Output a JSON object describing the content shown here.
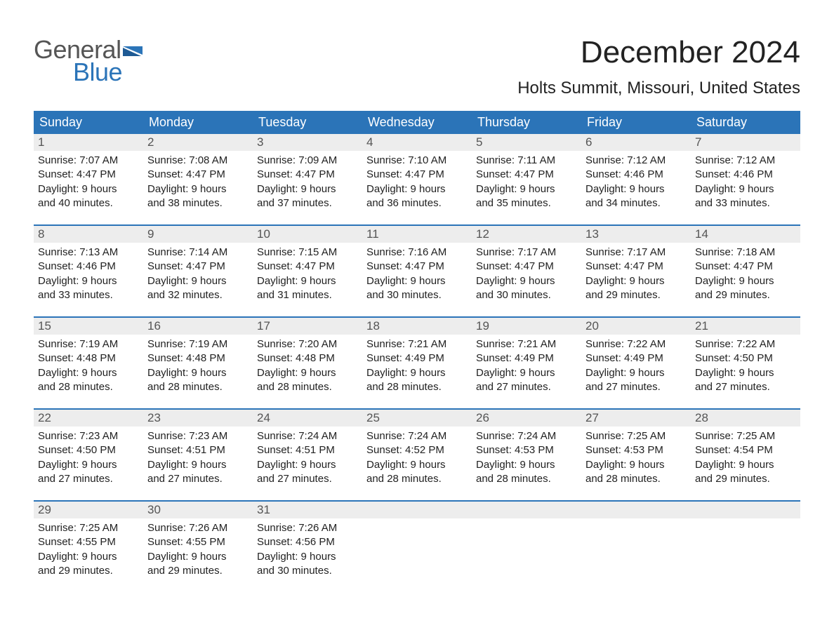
{
  "colors": {
    "brand_blue": "#2b74b8",
    "header_bg": "#2b74b8",
    "daynum_bg": "#ededed",
    "text": "#222222",
    "muted": "#555555",
    "background": "#ffffff"
  },
  "typography": {
    "font_family": "Arial, Helvetica, sans-serif",
    "month_title_fontsize": 44,
    "location_fontsize": 24,
    "weekday_fontsize": 18,
    "daynum_fontsize": 17,
    "body_fontsize": 15
  },
  "logo": {
    "line1": "General",
    "line2": "Blue"
  },
  "header": {
    "month_title": "December 2024",
    "location": "Holts Summit, Missouri, United States"
  },
  "weekdays": [
    "Sunday",
    "Monday",
    "Tuesday",
    "Wednesday",
    "Thursday",
    "Friday",
    "Saturday"
  ],
  "weeks": [
    [
      {
        "num": "1",
        "sunrise": "Sunrise: 7:07 AM",
        "sunset": "Sunset: 4:47 PM",
        "daylight1": "Daylight: 9 hours",
        "daylight2": "and 40 minutes."
      },
      {
        "num": "2",
        "sunrise": "Sunrise: 7:08 AM",
        "sunset": "Sunset: 4:47 PM",
        "daylight1": "Daylight: 9 hours",
        "daylight2": "and 38 minutes."
      },
      {
        "num": "3",
        "sunrise": "Sunrise: 7:09 AM",
        "sunset": "Sunset: 4:47 PM",
        "daylight1": "Daylight: 9 hours",
        "daylight2": "and 37 minutes."
      },
      {
        "num": "4",
        "sunrise": "Sunrise: 7:10 AM",
        "sunset": "Sunset: 4:47 PM",
        "daylight1": "Daylight: 9 hours",
        "daylight2": "and 36 minutes."
      },
      {
        "num": "5",
        "sunrise": "Sunrise: 7:11 AM",
        "sunset": "Sunset: 4:47 PM",
        "daylight1": "Daylight: 9 hours",
        "daylight2": "and 35 minutes."
      },
      {
        "num": "6",
        "sunrise": "Sunrise: 7:12 AM",
        "sunset": "Sunset: 4:46 PM",
        "daylight1": "Daylight: 9 hours",
        "daylight2": "and 34 minutes."
      },
      {
        "num": "7",
        "sunrise": "Sunrise: 7:12 AM",
        "sunset": "Sunset: 4:46 PM",
        "daylight1": "Daylight: 9 hours",
        "daylight2": "and 33 minutes."
      }
    ],
    [
      {
        "num": "8",
        "sunrise": "Sunrise: 7:13 AM",
        "sunset": "Sunset: 4:46 PM",
        "daylight1": "Daylight: 9 hours",
        "daylight2": "and 33 minutes."
      },
      {
        "num": "9",
        "sunrise": "Sunrise: 7:14 AM",
        "sunset": "Sunset: 4:47 PM",
        "daylight1": "Daylight: 9 hours",
        "daylight2": "and 32 minutes."
      },
      {
        "num": "10",
        "sunrise": "Sunrise: 7:15 AM",
        "sunset": "Sunset: 4:47 PM",
        "daylight1": "Daylight: 9 hours",
        "daylight2": "and 31 minutes."
      },
      {
        "num": "11",
        "sunrise": "Sunrise: 7:16 AM",
        "sunset": "Sunset: 4:47 PM",
        "daylight1": "Daylight: 9 hours",
        "daylight2": "and 30 minutes."
      },
      {
        "num": "12",
        "sunrise": "Sunrise: 7:17 AM",
        "sunset": "Sunset: 4:47 PM",
        "daylight1": "Daylight: 9 hours",
        "daylight2": "and 30 minutes."
      },
      {
        "num": "13",
        "sunrise": "Sunrise: 7:17 AM",
        "sunset": "Sunset: 4:47 PM",
        "daylight1": "Daylight: 9 hours",
        "daylight2": "and 29 minutes."
      },
      {
        "num": "14",
        "sunrise": "Sunrise: 7:18 AM",
        "sunset": "Sunset: 4:47 PM",
        "daylight1": "Daylight: 9 hours",
        "daylight2": "and 29 minutes."
      }
    ],
    [
      {
        "num": "15",
        "sunrise": "Sunrise: 7:19 AM",
        "sunset": "Sunset: 4:48 PM",
        "daylight1": "Daylight: 9 hours",
        "daylight2": "and 28 minutes."
      },
      {
        "num": "16",
        "sunrise": "Sunrise: 7:19 AM",
        "sunset": "Sunset: 4:48 PM",
        "daylight1": "Daylight: 9 hours",
        "daylight2": "and 28 minutes."
      },
      {
        "num": "17",
        "sunrise": "Sunrise: 7:20 AM",
        "sunset": "Sunset: 4:48 PM",
        "daylight1": "Daylight: 9 hours",
        "daylight2": "and 28 minutes."
      },
      {
        "num": "18",
        "sunrise": "Sunrise: 7:21 AM",
        "sunset": "Sunset: 4:49 PM",
        "daylight1": "Daylight: 9 hours",
        "daylight2": "and 28 minutes."
      },
      {
        "num": "19",
        "sunrise": "Sunrise: 7:21 AM",
        "sunset": "Sunset: 4:49 PM",
        "daylight1": "Daylight: 9 hours",
        "daylight2": "and 27 minutes."
      },
      {
        "num": "20",
        "sunrise": "Sunrise: 7:22 AM",
        "sunset": "Sunset: 4:49 PM",
        "daylight1": "Daylight: 9 hours",
        "daylight2": "and 27 minutes."
      },
      {
        "num": "21",
        "sunrise": "Sunrise: 7:22 AM",
        "sunset": "Sunset: 4:50 PM",
        "daylight1": "Daylight: 9 hours",
        "daylight2": "and 27 minutes."
      }
    ],
    [
      {
        "num": "22",
        "sunrise": "Sunrise: 7:23 AM",
        "sunset": "Sunset: 4:50 PM",
        "daylight1": "Daylight: 9 hours",
        "daylight2": "and 27 minutes."
      },
      {
        "num": "23",
        "sunrise": "Sunrise: 7:23 AM",
        "sunset": "Sunset: 4:51 PM",
        "daylight1": "Daylight: 9 hours",
        "daylight2": "and 27 minutes."
      },
      {
        "num": "24",
        "sunrise": "Sunrise: 7:24 AM",
        "sunset": "Sunset: 4:51 PM",
        "daylight1": "Daylight: 9 hours",
        "daylight2": "and 27 minutes."
      },
      {
        "num": "25",
        "sunrise": "Sunrise: 7:24 AM",
        "sunset": "Sunset: 4:52 PM",
        "daylight1": "Daylight: 9 hours",
        "daylight2": "and 28 minutes."
      },
      {
        "num": "26",
        "sunrise": "Sunrise: 7:24 AM",
        "sunset": "Sunset: 4:53 PM",
        "daylight1": "Daylight: 9 hours",
        "daylight2": "and 28 minutes."
      },
      {
        "num": "27",
        "sunrise": "Sunrise: 7:25 AM",
        "sunset": "Sunset: 4:53 PM",
        "daylight1": "Daylight: 9 hours",
        "daylight2": "and 28 minutes."
      },
      {
        "num": "28",
        "sunrise": "Sunrise: 7:25 AM",
        "sunset": "Sunset: 4:54 PM",
        "daylight1": "Daylight: 9 hours",
        "daylight2": "and 29 minutes."
      }
    ],
    [
      {
        "num": "29",
        "sunrise": "Sunrise: 7:25 AM",
        "sunset": "Sunset: 4:55 PM",
        "daylight1": "Daylight: 9 hours",
        "daylight2": "and 29 minutes."
      },
      {
        "num": "30",
        "sunrise": "Sunrise: 7:26 AM",
        "sunset": "Sunset: 4:55 PM",
        "daylight1": "Daylight: 9 hours",
        "daylight2": "and 29 minutes."
      },
      {
        "num": "31",
        "sunrise": "Sunrise: 7:26 AM",
        "sunset": "Sunset: 4:56 PM",
        "daylight1": "Daylight: 9 hours",
        "daylight2": "and 30 minutes."
      },
      {
        "empty": true
      },
      {
        "empty": true
      },
      {
        "empty": true
      },
      {
        "empty": true
      }
    ]
  ]
}
